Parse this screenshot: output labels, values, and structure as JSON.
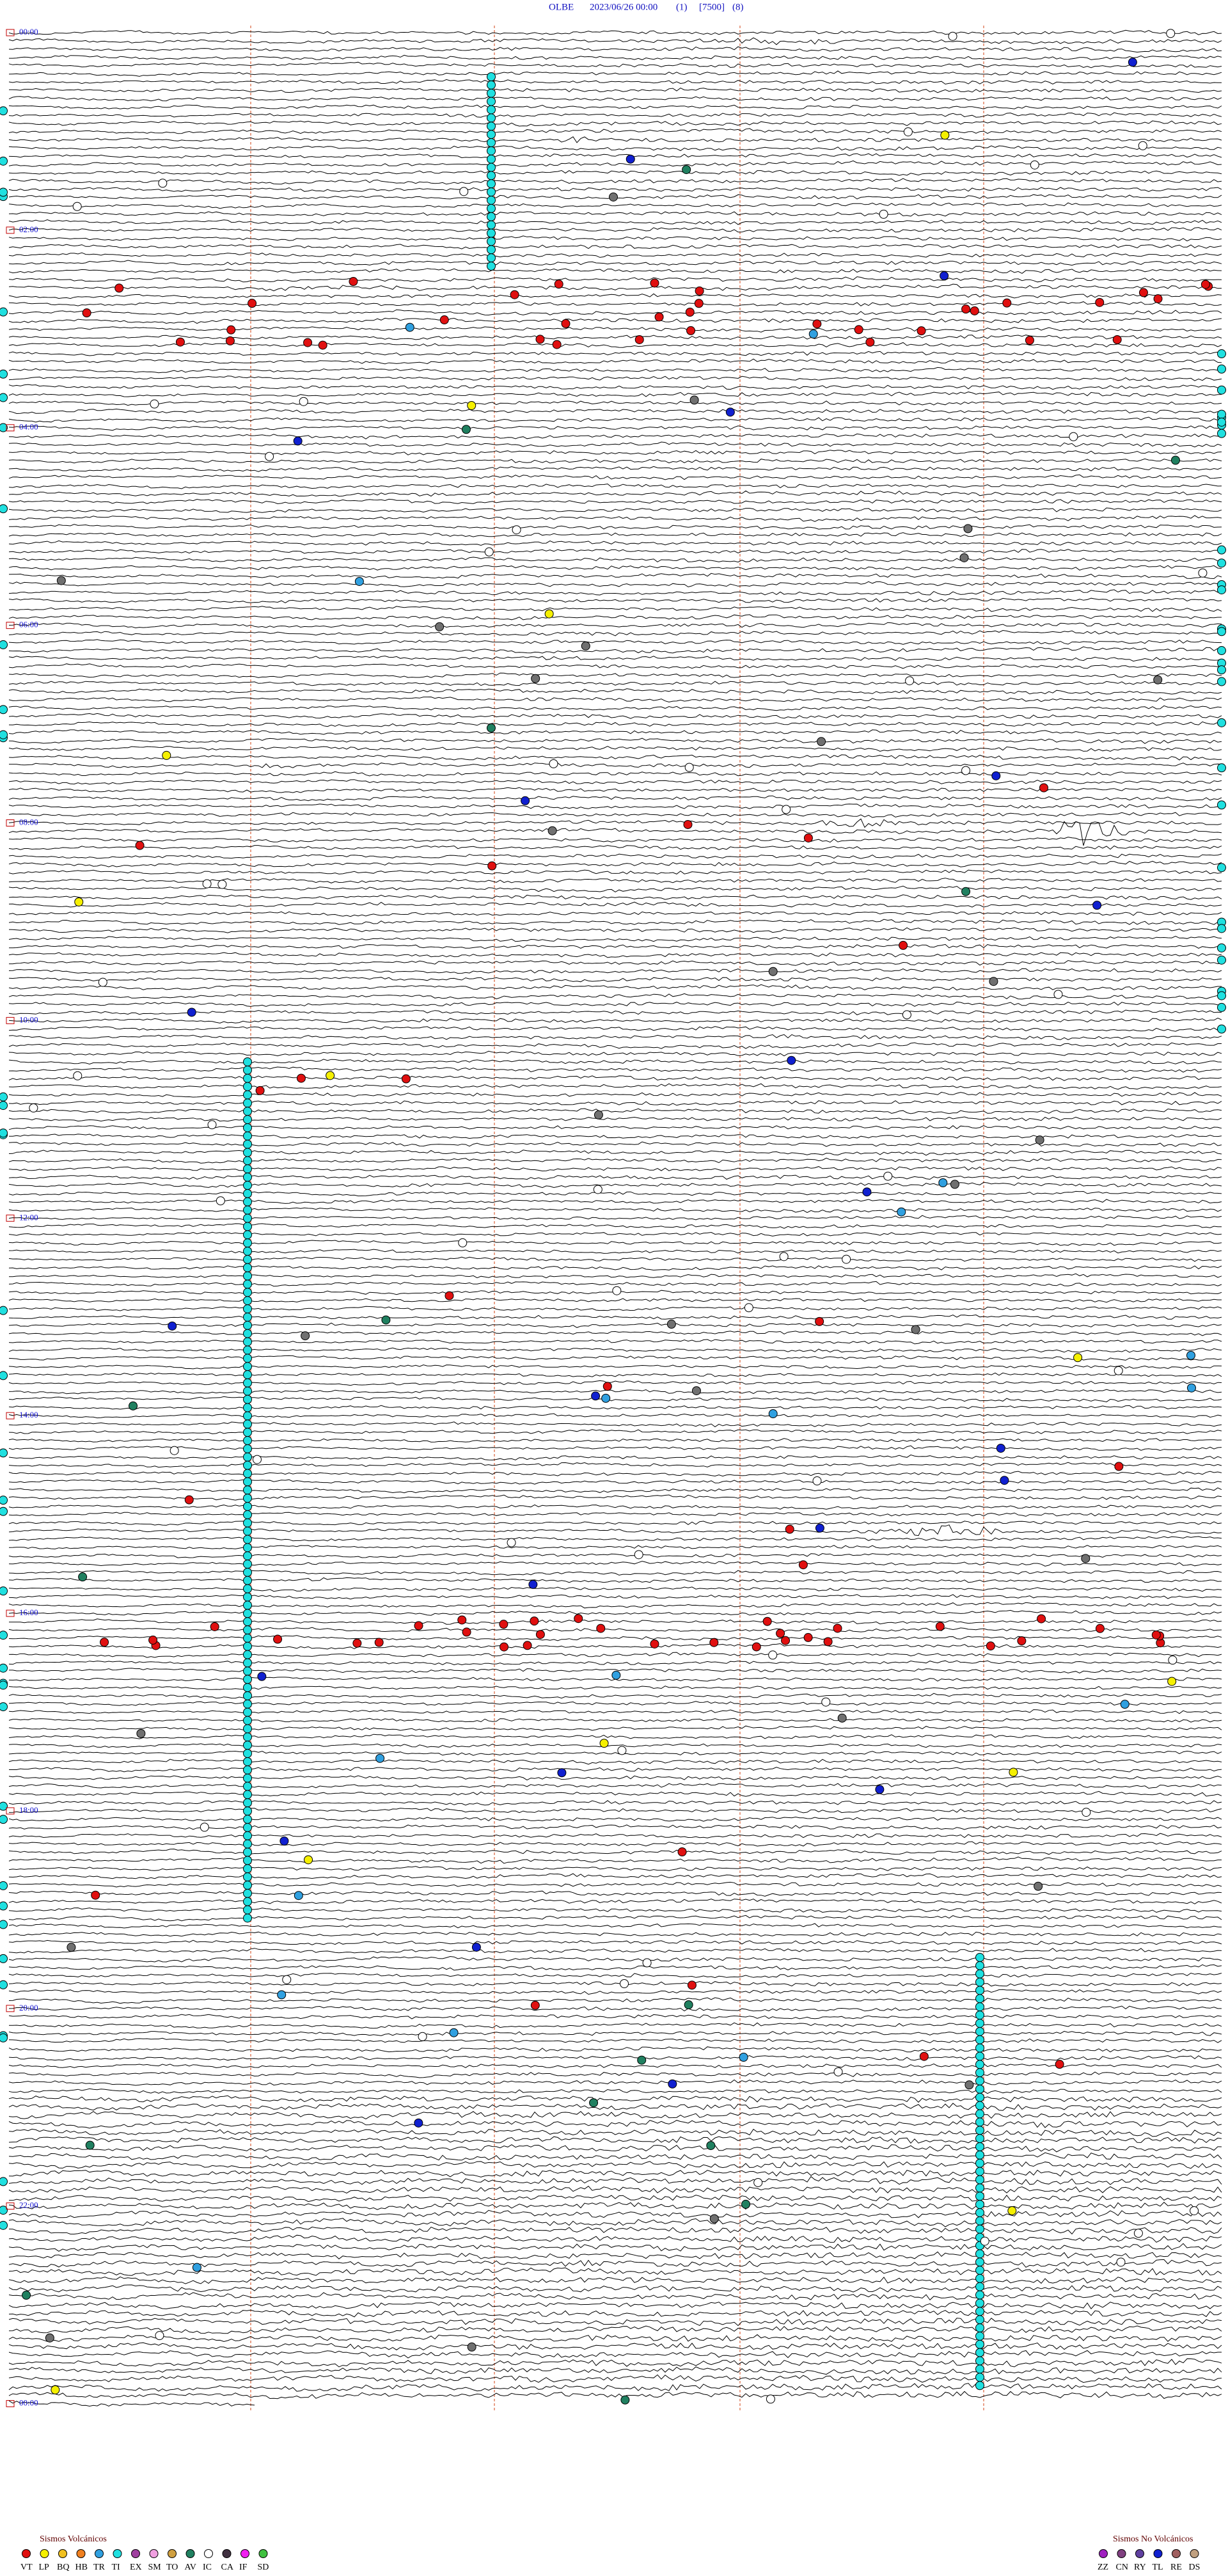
{
  "header": {
    "station": "OLBE",
    "datetime": "2023/06/26 00:00",
    "run": "(1)",
    "scale": "[7500]",
    "filter": "(8)"
  },
  "time_labels": [
    "00:00",
    "02:00",
    "04:00",
    "06:00",
    "08:00",
    "10:00",
    "12:00",
    "14:00",
    "16:00",
    "18:00",
    "20:00",
    "22:00",
    "00:00"
  ],
  "legend": {
    "volcanic": {
      "title": "Sismos Volcánicos",
      "items": [
        {
          "code": "VT",
          "color": "#e01010"
        },
        {
          "code": "LP",
          "color": "#f5f000"
        },
        {
          "code": "BQ",
          "color": "#f0c020"
        },
        {
          "code": "HB",
          "color": "#f08020"
        },
        {
          "code": "TR",
          "color": "#30a0e0"
        },
        {
          "code": "TI",
          "color": "#20e0e0"
        },
        {
          "code": "EX",
          "color": "#a040a0"
        },
        {
          "code": "SM",
          "color": "#f0a0e0"
        },
        {
          "code": "TO",
          "color": "#d0a040"
        },
        {
          "code": "AV",
          "color": "#208060"
        },
        {
          "code": "IC",
          "color": "#ffffff"
        },
        {
          "code": "CA",
          "color": "#403040"
        },
        {
          "code": "IF",
          "color": "#f020f0"
        },
        {
          "code": "SD",
          "color": "#40c040"
        }
      ]
    },
    "non_volcanic": {
      "title": "Sismos No Volcánicos",
      "items": [
        {
          "code": "ZZ",
          "color": "#a020c0"
        },
        {
          "code": "CN",
          "color": "#804080"
        },
        {
          "code": "RY",
          "color": "#6040a0"
        },
        {
          "code": "TL",
          "color": "#1020d0"
        },
        {
          "code": "RE",
          "color": "#a06060"
        },
        {
          "code": "DS",
          "color": "#c0a080"
        }
      ]
    }
  }
}
